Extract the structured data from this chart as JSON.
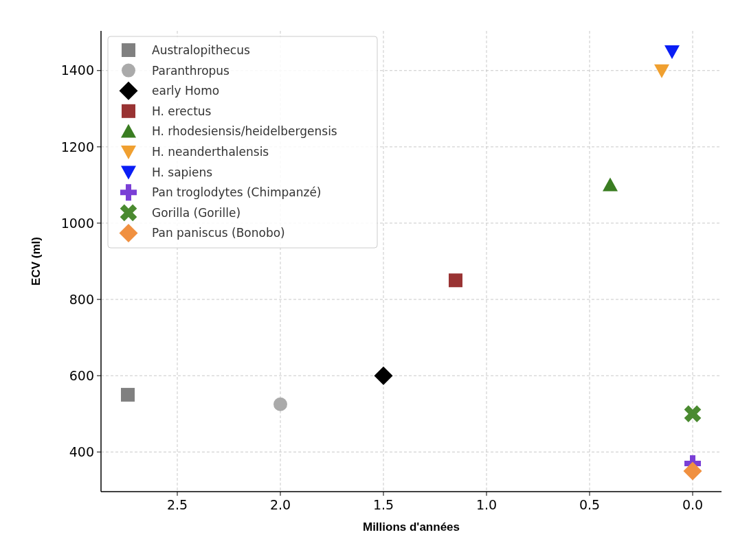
{
  "chart_data": {
    "type": "scatter",
    "xlabel": "Millions d'années",
    "ylabel": "ECV (ml)",
    "xlim": [
      2.87,
      -0.14
    ],
    "xticks": [
      {
        "value": 2.5,
        "label": "2.5"
      },
      {
        "value": 2,
        "label": "2.0"
      },
      {
        "value": 1.5,
        "label": "1.5"
      },
      {
        "value": 1,
        "label": "1.0"
      },
      {
        "value": 0.5,
        "label": "0.5"
      },
      {
        "value": 0,
        "label": "0.0"
      }
    ],
    "ylim": [
      296,
      1504
    ],
    "yticks": [
      400,
      600,
      800,
      1000,
      1200,
      1400
    ],
    "grid": true,
    "legend": "top left",
    "series": [
      {
        "name": "Australopithecus",
        "color": "#808080",
        "marker": "square",
        "x": [
          2.74
        ],
        "values": [
          550
        ]
      },
      {
        "name": "Paranthropus",
        "color": "#aaaaaa",
        "marker": "circle",
        "x": [
          2.0
        ],
        "values": [
          525
        ]
      },
      {
        "name": "early Homo",
        "color": "#000000",
        "marker": "diamond",
        "x": [
          1.5
        ],
        "values": [
          600
        ]
      },
      {
        "name": "H. erectus",
        "color": "#993333",
        "marker": "square",
        "x": [
          1.15
        ],
        "values": [
          850
        ]
      },
      {
        "name": "H. rhodesiensis/heidelbergensis",
        "color": "#3a7d22",
        "marker": "triangle",
        "x": [
          0.4
        ],
        "values": [
          1100
        ]
      },
      {
        "name": "H. neanderthalensis",
        "color": "#f0a030",
        "marker": "triangle_down",
        "x": [
          0.15
        ],
        "values": [
          1400
        ]
      },
      {
        "name": "H. sapiens",
        "color": "#0a1ef5",
        "marker": "triangle_down",
        "x": [
          0.1
        ],
        "values": [
          1450
        ]
      },
      {
        "name": "Pan troglodytes (Chimpanzé)",
        "color": "#7a3fd6",
        "marker": "plus",
        "x": [
          0
        ],
        "values": [
          370
        ]
      },
      {
        "name": "Gorilla (Gorille)",
        "color": "#4a8a30",
        "marker": "x",
        "x": [
          0
        ],
        "values": [
          500
        ]
      },
      {
        "name": "Pan paniscus (Bonobo)",
        "color": "#f09040",
        "marker": "diamond",
        "x": [
          0
        ],
        "values": [
          350
        ]
      }
    ]
  }
}
